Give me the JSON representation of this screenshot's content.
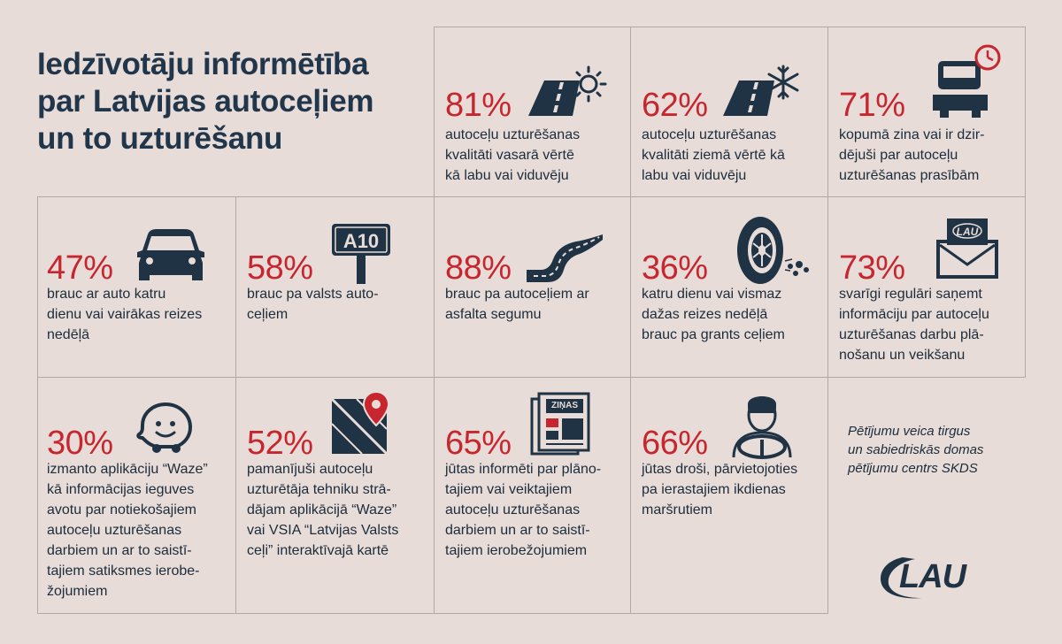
{
  "title": {
    "lines": [
      "Iedzīvotāju informētība",
      "par Latvijas autoceļiem",
      "un to uzturēšanu"
    ]
  },
  "stats": [
    {
      "pct": "81%",
      "lines": [
        "autoceļu uzturēšanas",
        "kvalitāti vasarā vērtē",
        "kā labu vai viduvēju"
      ],
      "icon": "road-sun-icon"
    },
    {
      "pct": "62%",
      "lines": [
        "autoceļu uzturēšanas",
        "kvalitāti ziemā vērtē kā",
        "labu vai viduvēju"
      ],
      "icon": "road-snowflake-icon"
    },
    {
      "pct": "71%",
      "lines": [
        "kopumā zina vai ir dzir-",
        "dējuši par autoceļu",
        "uzturēšanas prasībām"
      ],
      "icon": "snowplow-clock-icon"
    },
    {
      "pct": "47%",
      "lines": [
        "brauc ar auto katru",
        "dienu vai vairākas reizes",
        "nedēļā"
      ],
      "icon": "car-icon"
    },
    {
      "pct": "58%",
      "lines": [
        "brauc pa valsts auto-",
        "ceļiem"
      ],
      "icon": "road-sign-icon",
      "sign": "A10"
    },
    {
      "pct": "88%",
      "lines": [
        "brauc pa autoceļiem ar",
        "asfalta segumu"
      ],
      "icon": "winding-road-icon"
    },
    {
      "pct": "36%",
      "lines": [
        "katru dienu vai vismaz",
        "dažas reizes nedēļā",
        "brauc pa grants ceļiem"
      ],
      "icon": "tire-gravel-icon"
    },
    {
      "pct": "73%",
      "lines": [
        "svarīgi regulāri saņemt",
        "informāciju par autoceļu",
        "uzturēšanas darbu plā-",
        "nošanu un veikšanu"
      ],
      "icon": "envelope-lau-icon"
    },
    {
      "pct": "30%",
      "lines": [
        "izmanto aplikāciju “Waze”",
        "kā informācijas ieguves",
        "avotu par notiekošajiem",
        "autoceļu uzturēšanas",
        "darbiem un ar to saistī-",
        "tajiem satiksmes ierobe-",
        "žojumiem"
      ],
      "icon": "waze-icon"
    },
    {
      "pct": "52%",
      "lines": [
        "pamanījuši autoceļu",
        "uzturētāja tehniku strā-",
        "dājam aplikācijā “Waze”",
        "vai VSIA “Latvijas Valsts",
        "ceļi” interaktīvajā kartē"
      ],
      "icon": "map-pin-icon"
    },
    {
      "pct": "65%",
      "lines": [
        "jūtas informēti par plāno-",
        "tajiem vai veiktajiem",
        "autoceļu uzturēšanas",
        "darbiem un ar to saistī-",
        "tajiem ierobežojumiem"
      ],
      "icon": "newspaper-icon",
      "paper": "ZIŅAS"
    },
    {
      "pct": "66%",
      "lines": [
        "jūtas droši, pārvietojoties",
        "pa ierastajiem ikdienas",
        "maršrutiem"
      ],
      "icon": "driver-icon"
    }
  ],
  "credit": {
    "lines": [
      "Pētījumu veica tirgus",
      "un sabiedriskās domas",
      "pētījumu centrs SKDS"
    ]
  },
  "logo": "LAU",
  "colors": {
    "background": "#e7dcd8",
    "accent": "#c8262f",
    "navy": "#1f3344",
    "border": "#b4a8a3"
  }
}
